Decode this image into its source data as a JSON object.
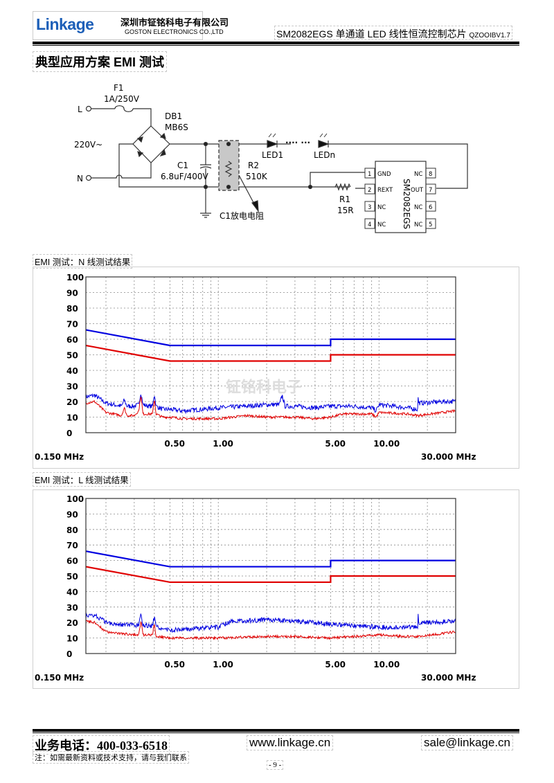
{
  "header": {
    "brand": "Linkage",
    "company_cn": "深圳市钲铭科电子有限公司",
    "company_en": "GOSTON ELECTRONICS CO.,LTD",
    "doc_title": "SM2082EGS 单通道 LED 线性恒流控制芯片",
    "doc_version": "QZOOIBV1.7"
  },
  "section_title": "典型应用方案 EMI 测试",
  "schematic": {
    "L": "L",
    "N": "N",
    "vin": "220V~",
    "F1": "F1",
    "F1_value": "1A/250V",
    "DB1": "DB1",
    "DB1_value": "MB6S",
    "C1": "C1",
    "C1_value": "6.8uF/400V",
    "R2": "R2",
    "R2_value": "510K",
    "R2_note": "C1放电电阻",
    "LED1": "LED1",
    "LEDn": "LEDn",
    "dots": "···· ···",
    "R1": "R1",
    "R1_value": "15R",
    "ic_name": "SM2082EGS",
    "pins": [
      {
        "num": "1",
        "name": "GND"
      },
      {
        "num": "2",
        "name": "REXT"
      },
      {
        "num": "3",
        "name": "NC"
      },
      {
        "num": "4",
        "name": "NC"
      },
      {
        "num": "5",
        "name": "NC"
      },
      {
        "num": "6",
        "name": "NC"
      },
      {
        "num": "7",
        "name": "OUT"
      },
      {
        "num": "8",
        "name": "NC"
      }
    ]
  },
  "watermark": "钲铭科电子",
  "chart_data": [
    {
      "type": "line",
      "title": "EMI 测试：N 线测试结果",
      "x_scale": "log",
      "xlim": [
        0.15,
        30
      ],
      "ylim": [
        0,
        100
      ],
      "y_ticks": [
        "0",
        "10",
        "20",
        "30",
        "40",
        "50",
        "60",
        "70",
        "80",
        "90",
        "100"
      ],
      "x_tick_labels": [
        {
          "x": 0.5,
          "label": "0.50"
        },
        {
          "x": 1,
          "label": "1.00"
        },
        {
          "x": 5,
          "label": "5.00"
        },
        {
          "x": 10,
          "label": "10.00"
        }
      ],
      "x_start_label": "0.150 MHz",
      "x_end_label": "30.000 MHz",
      "grid": true,
      "colors": {
        "blue": "#0000e0",
        "red": "#e00000"
      },
      "series": [
        {
          "color": "blue",
          "kind": "limit",
          "x": [
            0.15,
            0.5,
            5,
            5,
            30
          ],
          "y": [
            66,
            56,
            56,
            60,
            60
          ]
        },
        {
          "color": "red",
          "kind": "limit",
          "x": [
            0.15,
            0.5,
            5,
            5,
            30
          ],
          "y": [
            56,
            46,
            46,
            50,
            50
          ]
        },
        {
          "color": "blue",
          "kind": "trace",
          "x": [
            0.15,
            0.17,
            0.2,
            0.25,
            0.26,
            0.27,
            0.3,
            0.32,
            0.33,
            0.34,
            0.37,
            0.39,
            0.4,
            0.41,
            0.45,
            0.5,
            0.6,
            0.8,
            1,
            1.5,
            2,
            2.4,
            2.5,
            2.6,
            3,
            4,
            5,
            7,
            9,
            9.6,
            10,
            15,
            17.4,
            17.5,
            17.6,
            25,
            30
          ],
          "y": [
            23,
            24,
            19,
            17,
            21,
            17,
            17,
            18,
            26,
            18,
            17,
            17,
            25,
            17,
            15,
            15,
            14,
            15,
            16,
            17,
            18,
            18,
            24,
            17,
            17,
            16,
            17,
            17,
            16,
            14,
            18,
            16,
            15,
            25,
            19,
            20,
            20
          ]
        },
        {
          "color": "red",
          "kind": "trace",
          "x": [
            0.15,
            0.17,
            0.2,
            0.25,
            0.26,
            0.27,
            0.3,
            0.32,
            0.33,
            0.34,
            0.37,
            0.39,
            0.4,
            0.41,
            0.45,
            0.5,
            0.6,
            1,
            1.5,
            2,
            3,
            4,
            5,
            6,
            9,
            9.6,
            10,
            15,
            17.5,
            25,
            30
          ],
          "y": [
            19,
            20,
            13,
            11,
            16,
            11,
            11,
            14,
            24,
            12,
            12,
            12,
            22,
            12,
            10,
            10,
            9,
            9,
            11,
            10,
            10,
            9,
            10,
            12,
            12,
            10,
            13,
            12,
            11,
            13,
            14
          ]
        }
      ]
    },
    {
      "type": "line",
      "title": "EMI 测试：L 线测试结果",
      "x_scale": "log",
      "xlim": [
        0.15,
        30
      ],
      "ylim": [
        0,
        100
      ],
      "y_ticks": [
        "0",
        "10",
        "20",
        "30",
        "40",
        "50",
        "60",
        "70",
        "80",
        "90",
        "100"
      ],
      "x_tick_labels": [
        {
          "x": 0.5,
          "label": "0.50"
        },
        {
          "x": 1,
          "label": "1.00"
        },
        {
          "x": 5,
          "label": "5.00"
        },
        {
          "x": 10,
          "label": "10.00"
        }
      ],
      "x_start_label": "0.150 MHz",
      "x_end_label": "30.000 MHz",
      "grid": true,
      "colors": {
        "blue": "#0000e0",
        "red": "#e00000"
      },
      "series": [
        {
          "color": "blue",
          "kind": "limit",
          "x": [
            0.15,
            0.5,
            5,
            5,
            30
          ],
          "y": [
            66,
            56,
            56,
            60,
            60
          ]
        },
        {
          "color": "red",
          "kind": "limit",
          "x": [
            0.15,
            0.5,
            5,
            5,
            30
          ],
          "y": [
            56,
            46,
            46,
            50,
            50
          ]
        },
        {
          "color": "blue",
          "kind": "trace",
          "x": [
            0.15,
            0.17,
            0.2,
            0.3,
            0.32,
            0.33,
            0.34,
            0.39,
            0.4,
            0.41,
            0.5,
            0.7,
            1,
            1.2,
            1.5,
            2,
            3,
            5,
            7,
            10,
            15,
            17.4,
            17.5,
            17.6,
            20,
            30
          ],
          "y": [
            24,
            25,
            20,
            18,
            18,
            25,
            18,
            18,
            24,
            17,
            15,
            16,
            17,
            21,
            21,
            22,
            21,
            19,
            18,
            17,
            17,
            17,
            28,
            19,
            20,
            21
          ]
        },
        {
          "color": "red",
          "kind": "trace",
          "x": [
            0.15,
            0.17,
            0.2,
            0.3,
            0.32,
            0.33,
            0.34,
            0.39,
            0.4,
            0.41,
            0.5,
            1,
            2,
            3,
            5,
            7,
            10,
            15,
            17.5,
            30
          ],
          "y": [
            21,
            20,
            14,
            12,
            12,
            21,
            12,
            12,
            20,
            11,
            10,
            10,
            11,
            11,
            10,
            11,
            12,
            11,
            11,
            14
          ]
        }
      ]
    }
  ],
  "footer": {
    "phone": "业务电话：400-033-6518",
    "website": "www.linkage.cn",
    "email": "sale@linkage.cn",
    "note": "注：如需最新资料或技术支持，请与我们联系",
    "page": "- 9 -"
  }
}
